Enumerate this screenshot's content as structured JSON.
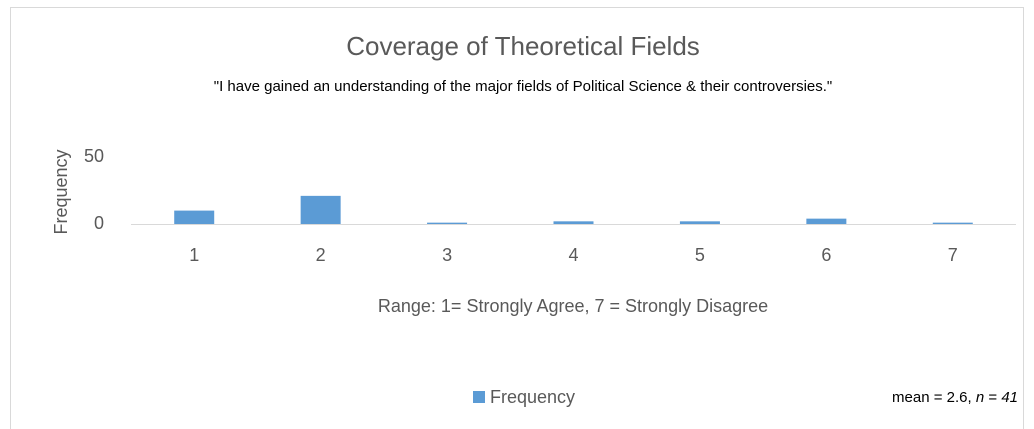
{
  "chart_data": {
    "type": "bar",
    "title": "Coverage of Theoretical Fields",
    "subtitle": "\"I have gained an understanding of the major fields of Political Science & their controversies.\"",
    "x_label": "Range: 1= Strongly Agree, 7 = Strongly Disagree",
    "y_label": "Frequency",
    "categories": [
      "1",
      "2",
      "3",
      "4",
      "5",
      "6",
      "7"
    ],
    "series": [
      {
        "name": "Frequency",
        "color": "#5b9bd5",
        "values": [
          10,
          21,
          1,
          2,
          2,
          4,
          1
        ]
      }
    ],
    "ylim": [
      0,
      50
    ],
    "yticks": [
      0,
      50
    ],
    "grid": false,
    "legend": "bottom",
    "annotation": [
      "mean = 2.6, ",
      "n",
      " = ",
      "41"
    ]
  }
}
